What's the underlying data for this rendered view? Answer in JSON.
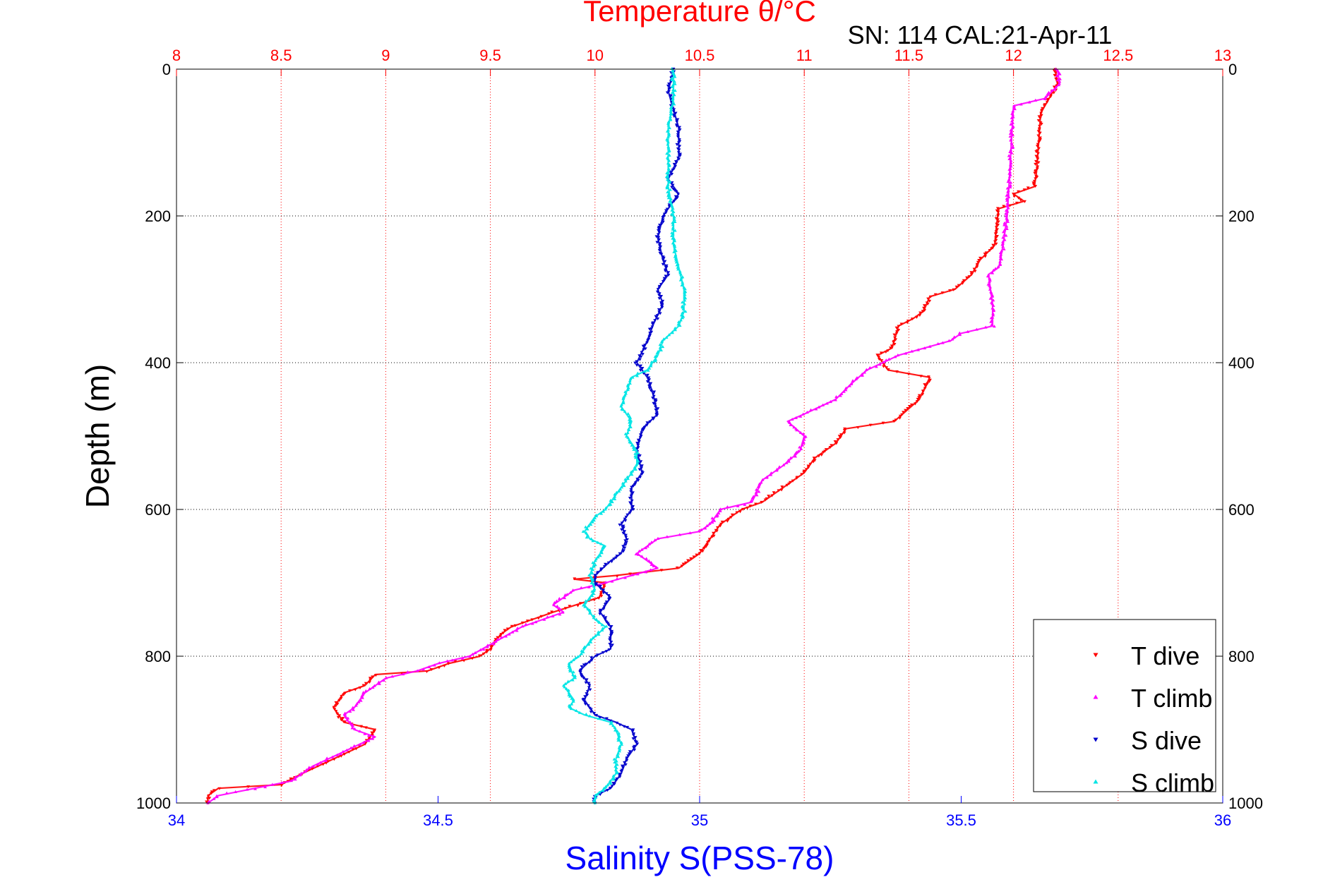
{
  "chart_data": {
    "type": "scatter",
    "title": "Temperature θ/°C",
    "subtitle": "SN: 114  CAL:21-Apr-11",
    "xlabel": "Salinity S(PSS-78)",
    "ylabel": "Depth (m)",
    "top_axis": {
      "label": "Temperature θ/°C",
      "range": [
        8,
        13
      ],
      "ticks": [
        "8",
        "8.5",
        "9",
        "9.5",
        "10",
        "10.5",
        "11",
        "11.5",
        "12",
        "12.5",
        "13"
      ]
    },
    "bottom_axis": {
      "label": "Salinity S(PSS-78)",
      "range": [
        34,
        36
      ],
      "ticks": [
        "34",
        "34.5",
        "35",
        "35.5",
        "36"
      ]
    },
    "left_axis": {
      "label": "Depth (m)",
      "range": [
        0,
        1000
      ],
      "reversed": true,
      "ticks": [
        "0",
        "200",
        "400",
        "600",
        "800",
        "1000"
      ]
    },
    "right_axis": {
      "range": [
        0,
        1000
      ],
      "reversed": true,
      "ticks": [
        "0",
        "200",
        "400",
        "600",
        "800",
        "1000"
      ]
    },
    "grid": true,
    "legend_position": "bottom-right",
    "series": [
      {
        "name": "T dive",
        "axis": "temperature",
        "color": "#ff0000",
        "marker": "triangle-down",
        "points": [
          [
            12.2,
            0
          ],
          [
            12.21,
            20
          ],
          [
            12.13,
            60
          ],
          [
            12.12,
            100
          ],
          [
            12.11,
            140
          ],
          [
            12.1,
            160
          ],
          [
            12.0,
            170
          ],
          [
            12.05,
            180
          ],
          [
            11.93,
            190
          ],
          [
            11.92,
            210
          ],
          [
            11.91,
            240
          ],
          [
            11.84,
            260
          ],
          [
            11.8,
            280
          ],
          [
            11.72,
            300
          ],
          [
            11.6,
            310
          ],
          [
            11.57,
            330
          ],
          [
            11.52,
            340
          ],
          [
            11.45,
            350
          ],
          [
            11.42,
            380
          ],
          [
            11.35,
            390
          ],
          [
            11.4,
            410
          ],
          [
            11.6,
            420
          ],
          [
            11.55,
            450
          ],
          [
            11.43,
            480
          ],
          [
            11.2,
            490
          ],
          [
            11.15,
            510
          ],
          [
            11.05,
            530
          ],
          [
            11.0,
            550
          ],
          [
            10.9,
            570
          ],
          [
            10.8,
            590
          ],
          [
            10.7,
            600
          ],
          [
            10.6,
            620
          ],
          [
            10.55,
            640
          ],
          [
            10.5,
            660
          ],
          [
            10.4,
            680
          ],
          [
            10.1,
            690
          ],
          [
            9.9,
            695
          ],
          [
            10.05,
            700
          ],
          [
            10.02,
            720
          ],
          [
            9.8,
            740
          ],
          [
            9.7,
            750
          ],
          [
            9.6,
            760
          ],
          [
            9.55,
            770
          ],
          [
            9.5,
            790
          ],
          [
            9.45,
            800
          ],
          [
            9.3,
            810
          ],
          [
            9.2,
            820
          ],
          [
            8.95,
            825
          ],
          [
            8.9,
            840
          ],
          [
            8.8,
            850
          ],
          [
            8.75,
            870
          ],
          [
            8.8,
            890
          ],
          [
            8.95,
            900
          ],
          [
            8.9,
            920
          ],
          [
            8.75,
            940
          ],
          [
            8.6,
            960
          ],
          [
            8.5,
            975
          ],
          [
            8.2,
            980
          ],
          [
            8.15,
            990
          ],
          [
            8.15,
            1000
          ]
        ]
      },
      {
        "name": "T climb",
        "axis": "temperature",
        "color": "#ff00ff",
        "marker": "triangle-up",
        "points": [
          [
            12.21,
            0
          ],
          [
            12.22,
            20
          ],
          [
            12.15,
            40
          ],
          [
            12.0,
            50
          ],
          [
            11.99,
            100
          ],
          [
            11.98,
            150
          ],
          [
            11.97,
            200
          ],
          [
            11.95,
            240
          ],
          [
            11.93,
            270
          ],
          [
            11.88,
            280
          ],
          [
            11.9,
            320
          ],
          [
            11.9,
            350
          ],
          [
            11.75,
            360
          ],
          [
            11.7,
            370
          ],
          [
            11.45,
            390
          ],
          [
            11.3,
            410
          ],
          [
            11.22,
            430
          ],
          [
            11.15,
            450
          ],
          [
            11.0,
            470
          ],
          [
            10.92,
            480
          ],
          [
            11.0,
            500
          ],
          [
            10.98,
            520
          ],
          [
            10.9,
            540
          ],
          [
            10.8,
            560
          ],
          [
            10.75,
            590
          ],
          [
            10.6,
            600
          ],
          [
            10.55,
            620
          ],
          [
            10.5,
            630
          ],
          [
            10.3,
            640
          ],
          [
            10.2,
            660
          ],
          [
            10.3,
            680
          ],
          [
            10.05,
            700
          ],
          [
            9.9,
            710
          ],
          [
            9.85,
            720
          ],
          [
            9.8,
            730
          ],
          [
            9.85,
            740
          ],
          [
            9.65,
            760
          ],
          [
            9.4,
            800
          ],
          [
            9.25,
            810
          ],
          [
            9.15,
            820
          ],
          [
            9.0,
            830
          ],
          [
            8.95,
            840
          ],
          [
            8.9,
            850
          ],
          [
            8.85,
            870
          ],
          [
            8.8,
            880
          ],
          [
            8.85,
            900
          ],
          [
            8.95,
            910
          ],
          [
            8.8,
            930
          ],
          [
            8.65,
            950
          ],
          [
            8.55,
            970
          ],
          [
            8.2,
            990
          ],
          [
            8.15,
            1000
          ]
        ]
      },
      {
        "name": "S dive",
        "axis": "salinity",
        "color": "#0000cc",
        "marker": "triangle-down",
        "points": [
          [
            34.95,
            0
          ],
          [
            34.94,
            30
          ],
          [
            34.96,
            80
          ],
          [
            34.96,
            120
          ],
          [
            34.94,
            150
          ],
          [
            34.96,
            170
          ],
          [
            34.93,
            200
          ],
          [
            34.92,
            230
          ],
          [
            34.93,
            260
          ],
          [
            34.94,
            280
          ],
          [
            34.92,
            300
          ],
          [
            34.93,
            320
          ],
          [
            34.91,
            350
          ],
          [
            34.9,
            370
          ],
          [
            34.88,
            400
          ],
          [
            34.9,
            420
          ],
          [
            34.91,
            440
          ],
          [
            34.92,
            470
          ],
          [
            34.89,
            490
          ],
          [
            34.88,
            520
          ],
          [
            34.89,
            550
          ],
          [
            34.87,
            570
          ],
          [
            34.87,
            600
          ],
          [
            34.85,
            620
          ],
          [
            34.86,
            640
          ],
          [
            34.85,
            660
          ],
          [
            34.83,
            670
          ],
          [
            34.8,
            690
          ],
          [
            34.8,
            700
          ],
          [
            34.83,
            720
          ],
          [
            34.81,
            740
          ],
          [
            34.83,
            760
          ],
          [
            34.83,
            790
          ],
          [
            34.8,
            800
          ],
          [
            34.77,
            820
          ],
          [
            34.79,
            840
          ],
          [
            34.78,
            860
          ],
          [
            34.8,
            880
          ],
          [
            34.84,
            890
          ],
          [
            34.87,
            900
          ],
          [
            34.88,
            920
          ],
          [
            34.86,
            940
          ],
          [
            34.85,
            960
          ],
          [
            34.83,
            980
          ],
          [
            34.8,
            990
          ],
          [
            34.8,
            1000
          ]
        ]
      },
      {
        "name": "S climb",
        "axis": "salinity",
        "color": "#00e5e5",
        "marker": "triangle-up",
        "points": [
          [
            34.95,
            0
          ],
          [
            34.95,
            40
          ],
          [
            34.94,
            80
          ],
          [
            34.94,
            120
          ],
          [
            34.94,
            160
          ],
          [
            34.95,
            200
          ],
          [
            34.95,
            240
          ],
          [
            34.96,
            270
          ],
          [
            34.97,
            300
          ],
          [
            34.97,
            330
          ],
          [
            34.96,
            350
          ],
          [
            34.93,
            370
          ],
          [
            34.92,
            390
          ],
          [
            34.9,
            410
          ],
          [
            34.87,
            420
          ],
          [
            34.86,
            440
          ],
          [
            34.85,
            460
          ],
          [
            34.87,
            480
          ],
          [
            34.86,
            500
          ],
          [
            34.88,
            520
          ],
          [
            34.88,
            540
          ],
          [
            34.86,
            560
          ],
          [
            34.84,
            580
          ],
          [
            34.82,
            600
          ],
          [
            34.8,
            610
          ],
          [
            34.78,
            630
          ],
          [
            34.79,
            640
          ],
          [
            34.82,
            650
          ],
          [
            34.8,
            670
          ],
          [
            34.79,
            690
          ],
          [
            34.8,
            710
          ],
          [
            34.78,
            730
          ],
          [
            34.8,
            750
          ],
          [
            34.82,
            760
          ],
          [
            34.79,
            780
          ],
          [
            34.78,
            790
          ],
          [
            34.77,
            800
          ],
          [
            34.75,
            810
          ],
          [
            34.76,
            830
          ],
          [
            34.74,
            840
          ],
          [
            34.75,
            850
          ],
          [
            34.76,
            860
          ],
          [
            34.75,
            870
          ],
          [
            34.78,
            880
          ],
          [
            34.83,
            890
          ],
          [
            34.84,
            900
          ],
          [
            34.85,
            920
          ],
          [
            34.84,
            940
          ],
          [
            34.84,
            960
          ],
          [
            34.82,
            980
          ],
          [
            34.8,
            990
          ],
          [
            34.8,
            1000
          ]
        ]
      }
    ],
    "legend": [
      {
        "label": "T dive",
        "color": "#ff0000",
        "marker": "triangle-down"
      },
      {
        "label": "T climb",
        "color": "#ff00ff",
        "marker": "triangle-up"
      },
      {
        "label": "S dive",
        "color": "#0000cc",
        "marker": "triangle-down"
      },
      {
        "label": "S climb",
        "color": "#00e5e5",
        "marker": "triangle-up"
      }
    ],
    "colors": {
      "temperature_axis": "#ff0000",
      "salinity_axis": "#0000ff",
      "grid_temperature": "#ff0000",
      "grid_depth": "#000000"
    }
  }
}
